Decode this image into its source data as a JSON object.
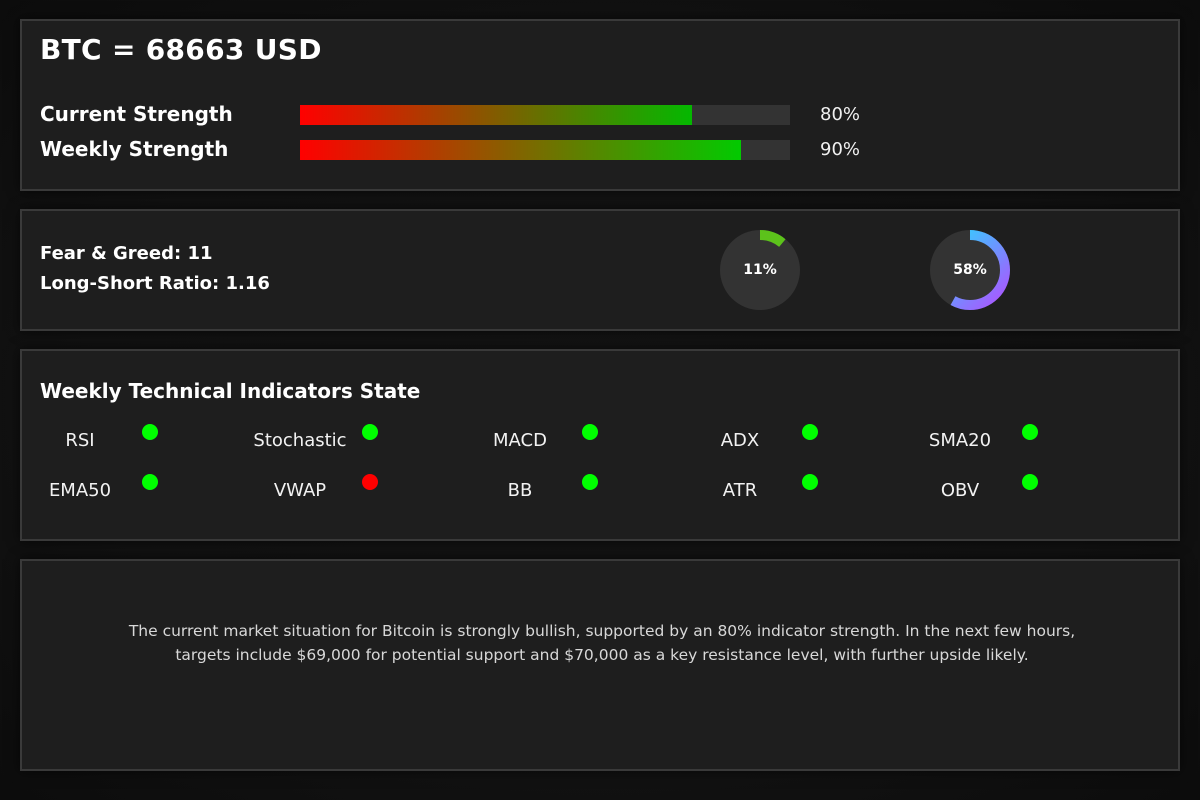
{
  "header": {
    "title": "BTC = 68663 USD"
  },
  "strength": {
    "current": {
      "label": "Current Strength",
      "value": 0.8,
      "text": "80%"
    },
    "weekly": {
      "label": "Weekly Strength",
      "value": 0.9,
      "text": "90%"
    }
  },
  "sentiment": {
    "fear_greed": "Fear & Greed: 11",
    "long_short": "Long-Short Ratio: 1.16",
    "gauge1": {
      "value": 0.11,
      "text": "11%",
      "color": "#5cc21b"
    },
    "gauge2": {
      "value": 0.58,
      "text": "58%",
      "color_start": "#22e0ff",
      "color_end": "#b050ff"
    }
  },
  "indicators": {
    "title": "Weekly Technical Indicators State",
    "bullish_color": "#00ff00",
    "bearish_color": "#ff0000",
    "items": [
      {
        "name": "RSI",
        "state": "bullish"
      },
      {
        "name": "Stochastic",
        "state": "bullish"
      },
      {
        "name": "MACD",
        "state": "bullish"
      },
      {
        "name": "ADX",
        "state": "bullish"
      },
      {
        "name": "SMA20",
        "state": "bullish"
      },
      {
        "name": "EMA50",
        "state": "bullish"
      },
      {
        "name": "VWAP",
        "state": "bearish"
      },
      {
        "name": "BB",
        "state": "bullish"
      },
      {
        "name": "ATR",
        "state": "bullish"
      },
      {
        "name": "OBV",
        "state": "bullish"
      }
    ]
  },
  "summary": {
    "line1": "The current market situation for Bitcoin is strongly bullish, supported by an 80% indicator strength. In the next few hours,",
    "line2": "targets include $69,000 for potential support and $70,000 as a key resistance level, with further upside likely."
  }
}
